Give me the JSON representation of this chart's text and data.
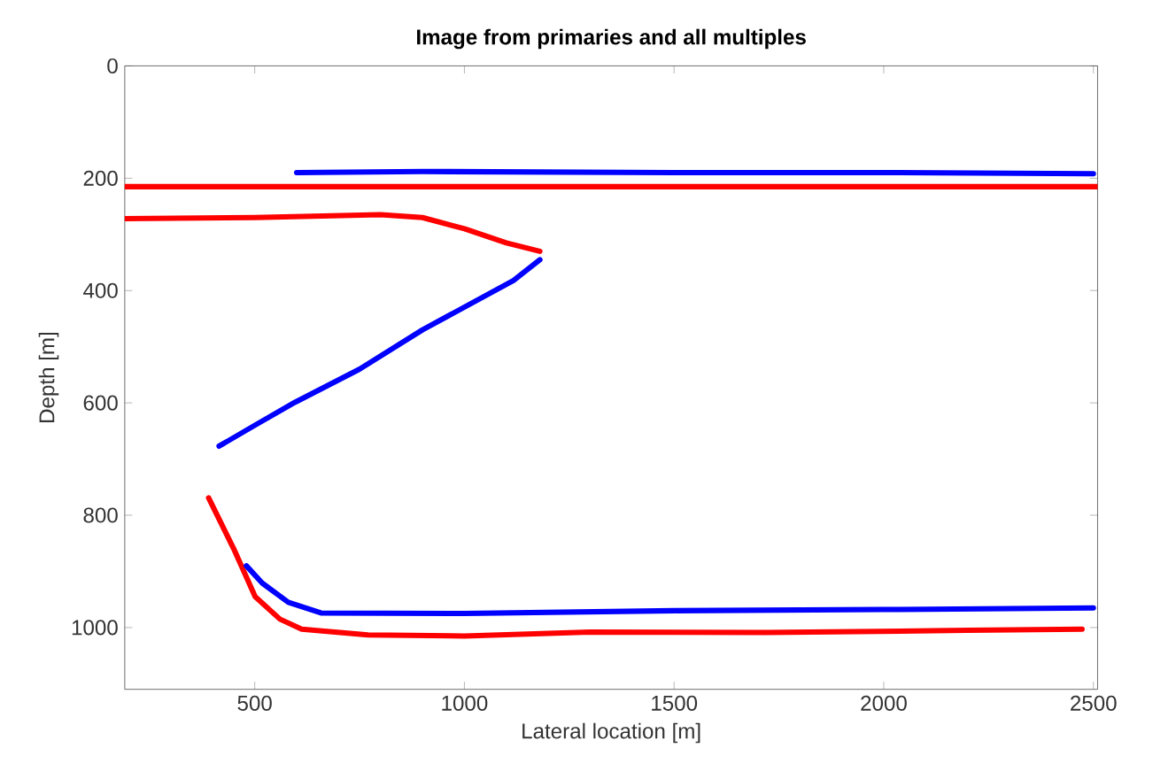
{
  "chart_data": {
    "type": "line",
    "title": "Image from primaries and all multiples",
    "xlabel": "Lateral location [m]",
    "ylabel": "Depth [m]",
    "xlim": [
      190,
      2510
    ],
    "ylim": [
      1110,
      0
    ],
    "xticks": [
      500,
      1000,
      1500,
      2000,
      2500
    ],
    "yticks": [
      0,
      200,
      400,
      600,
      800,
      1000
    ],
    "marker": "none",
    "line_style": "solid",
    "series": [
      {
        "color": "#ff0000",
        "x": [
          190,
          800,
          1500,
          2000,
          2510
        ],
        "values": [
          215,
          215,
          215,
          215,
          215
        ]
      },
      {
        "color": "#0000ff",
        "x": [
          600,
          900,
          1500,
          2000,
          2500
        ],
        "values": [
          190,
          188,
          190,
          190,
          192
        ]
      },
      {
        "color": "#ff0000",
        "x": [
          190,
          500,
          800,
          900,
          1000,
          1100,
          1180
        ],
        "values": [
          272,
          270,
          265,
          270,
          290,
          315,
          330
        ]
      },
      {
        "color": "#0000ff",
        "x": [
          1180,
          1117,
          900,
          750,
          596,
          500,
          415
        ],
        "values": [
          345,
          382,
          470,
          540,
          599,
          640,
          677
        ]
      },
      {
        "color": "#ff0000",
        "x": [
          390,
          450,
          501,
          560,
          612,
          770,
          1000,
          1300,
          1717,
          2200,
          2473
        ],
        "values": [
          769,
          860,
          945,
          985,
          1003,
          1013,
          1015,
          1008,
          1009,
          1005,
          1003
        ]
      },
      {
        "color": "#0000ff",
        "x": [
          480,
          518,
          580,
          658,
          1000,
          1500,
          2000,
          2500
        ],
        "values": [
          890,
          921,
          955,
          974,
          975,
          970,
          968,
          965
        ]
      }
    ]
  }
}
